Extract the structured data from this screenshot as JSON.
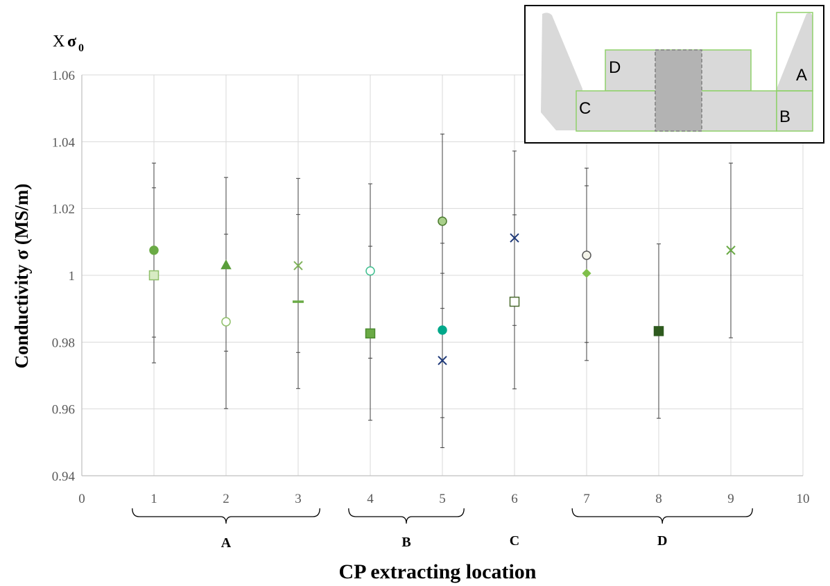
{
  "chart_data": {
    "type": "scatter",
    "title": "",
    "xlabel": "CP extracting location",
    "ylabel": "Conductivity σ (MS/m)",
    "yunit": {
      "prefix": "X",
      "symbol": "σ",
      "subscript": "0"
    },
    "xlim": [
      0,
      10
    ],
    "ylim": [
      0.94,
      1.06
    ],
    "xticks": [
      0,
      1,
      2,
      3,
      4,
      5,
      6,
      7,
      8,
      9,
      10
    ],
    "yticks": [
      "0.94",
      "0.96",
      "0.98",
      "1",
      "1.02",
      "1.04",
      "1.06"
    ],
    "grid": "vertical and horizontal",
    "groups": [
      {
        "label": "A",
        "from": 0.7,
        "to": 3.3
      },
      {
        "label": "B",
        "from": 3.7,
        "to": 5.3
      },
      {
        "label": "C",
        "from": 6,
        "to": 6
      },
      {
        "label": "D",
        "from": 6.8,
        "to": 9.3
      }
    ],
    "points": [
      {
        "x": 1,
        "y": 1.0075,
        "marker": "circle",
        "fill": "#6aaa45",
        "stroke": "#6aaa45",
        "ymin": 0.9738,
        "ymax": 1.0336
      },
      {
        "x": 1,
        "y": 1.0,
        "marker": "square",
        "fill": "#d7ebc3",
        "stroke": "#8fbf6a",
        "ymin": 0.9815,
        "ymax": 1.0262
      },
      {
        "x": 2,
        "y": 1.003,
        "marker": "triangle",
        "fill": "#5a9e3a",
        "stroke": "#5a9e3a",
        "ymin": 0.9773,
        "ymax": 1.0293
      },
      {
        "x": 2,
        "y": 0.9861,
        "marker": "circle",
        "fill": "#ffffff",
        "stroke": "#8fbf6a",
        "ymin": 0.9601,
        "ymax": 1.0123
      },
      {
        "x": 3,
        "y": 1.0029,
        "marker": "x",
        "fill": "none",
        "stroke": "#7fb25a",
        "ymin": 0.9769,
        "ymax": 1.029
      },
      {
        "x": 3,
        "y": 0.9921,
        "marker": "dash",
        "fill": "none",
        "stroke": "#6aaa45",
        "ymin": 0.9661,
        "ymax": 1.0182
      },
      {
        "x": 4,
        "y": 1.0013,
        "marker": "circle",
        "fill": "#ffffff",
        "stroke": "#3fbf8f",
        "ymin": 0.9752,
        "ymax": 1.0274
      },
      {
        "x": 4,
        "y": 0.9826,
        "marker": "square",
        "fill": "#6aaa45",
        "stroke": "#4a8a2e",
        "ymin": 0.9566,
        "ymax": 1.0087
      },
      {
        "x": 5,
        "y": 1.0162,
        "marker": "circle",
        "fill": "#a9cf8b",
        "stroke": "#4a7a2e",
        "ymin": 0.9901,
        "ymax": 1.0423
      },
      {
        "x": 5,
        "y": 0.9836,
        "marker": "circle",
        "fill": "#00a88a",
        "stroke": "#00a88a",
        "ymin": 0.9574,
        "ymax": 1.0096
      },
      {
        "x": 5,
        "y": 0.9745,
        "marker": "x",
        "fill": "none",
        "stroke": "#1f3a7a",
        "ymin": 0.9484,
        "ymax": 1.0006
      },
      {
        "x": 6,
        "y": 1.0112,
        "marker": "x",
        "fill": "none",
        "stroke": "#1f3a7a",
        "ymin": 0.985,
        "ymax": 1.0372
      },
      {
        "x": 6,
        "y": 0.9921,
        "marker": "square",
        "fill": "#ffffff",
        "stroke": "#4a6a2e",
        "ymin": 0.966,
        "ymax": 1.0181
      },
      {
        "x": 7,
        "y": 1.006,
        "marker": "circle",
        "fill": "#f4f4ea",
        "stroke": "#595959",
        "ymin": 0.9799,
        "ymax": 1.0321
      },
      {
        "x": 7,
        "y": 1.0006,
        "marker": "diamond",
        "fill": "#7fbf4a",
        "stroke": "#7fbf4a",
        "ymin": 0.9745,
        "ymax": 1.0268
      },
      {
        "x": 8,
        "y": 0.9833,
        "marker": "square",
        "fill": "#2e5a1e",
        "stroke": "#2e5a1e",
        "ymin": 0.9572,
        "ymax": 1.0094
      },
      {
        "x": 9,
        "y": 1.0075,
        "marker": "x",
        "fill": "none",
        "stroke": "#6aaa45",
        "ymin": 0.9813,
        "ymax": 1.0336
      }
    ]
  },
  "inset": {
    "labels": {
      "A": "A",
      "B": "B",
      "C": "C",
      "D": "D"
    },
    "colors": {
      "outline": "#8fd16a",
      "body": "#d9d9d9",
      "core": "#b3b3b3",
      "frame": "#000000"
    }
  }
}
